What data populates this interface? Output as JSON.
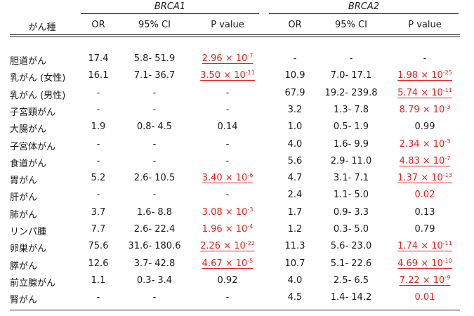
{
  "groups": {
    "brca1": "BRCA1",
    "brca2": "BRCA2"
  },
  "headers": {
    "cancer": "がん種",
    "or": "OR",
    "ci": "95% CI",
    "p": "P value"
  },
  "rows": [
    {
      "name": "胆道がん",
      "b1": {
        "or": "17.4",
        "ci": "5.8- 51.9",
        "p": {
          "m": "2.96 × 10",
          "e": "-7",
          "red": true,
          "ul": true
        }
      },
      "b2": {
        "or": "-",
        "ci": "-",
        "p": {
          "m": "-",
          "e": "",
          "red": false,
          "ul": false
        }
      }
    },
    {
      "name": "乳がん (女性)",
      "b1": {
        "or": "16.1",
        "ci": "7.1- 36.7",
        "p": {
          "m": "3.50 × 10",
          "e": "-11",
          "red": true,
          "ul": true
        }
      },
      "b2": {
        "or": "10.9",
        "ci": "7.0- 17.1",
        "p": {
          "m": "1.98 × 10",
          "e": "-25",
          "red": true,
          "ul": true
        }
      }
    },
    {
      "name": "乳がん (男性)",
      "b1": {
        "or": "-",
        "ci": "-",
        "p": {
          "m": "-",
          "e": "",
          "red": false,
          "ul": false
        }
      },
      "b2": {
        "or": "67.9",
        "ci": "19.2- 239.8",
        "p": {
          "m": "5.74 × 10",
          "e": "-11",
          "red": true,
          "ul": true
        }
      }
    },
    {
      "name": "子宮頸がん",
      "b1": {
        "or": "-",
        "ci": "-",
        "p": {
          "m": "-",
          "e": "",
          "red": false,
          "ul": false
        }
      },
      "b2": {
        "or": "3.2",
        "ci": "1.3- 7.8",
        "p": {
          "m": "8.79 × 10",
          "e": "-3",
          "red": true,
          "ul": false
        }
      }
    },
    {
      "name": "大腸がん",
      "b1": {
        "or": "1.9",
        "ci": "0.8- 4.5",
        "p": {
          "m": "0.14",
          "e": "",
          "red": false,
          "ul": false
        }
      },
      "b2": {
        "or": "1.0",
        "ci": "0.5- 1.9",
        "p": {
          "m": "0.99",
          "e": "",
          "red": false,
          "ul": false
        }
      }
    },
    {
      "name": "子宮体がん",
      "b1": {
        "or": "-",
        "ci": "-",
        "p": {
          "m": "-",
          "e": "",
          "red": false,
          "ul": false
        }
      },
      "b2": {
        "or": "4.0",
        "ci": "1.6- 9.9",
        "p": {
          "m": "2.34 × 10",
          "e": "-3",
          "red": true,
          "ul": false
        }
      }
    },
    {
      "name": "食道がん",
      "b1": {
        "or": "-",
        "ci": "-",
        "p": {
          "m": "-",
          "e": "",
          "red": false,
          "ul": false
        }
      },
      "b2": {
        "or": "5.6",
        "ci": "2.9- 11.0",
        "p": {
          "m": "4.83 × 10",
          "e": "-7",
          "red": true,
          "ul": true
        }
      }
    },
    {
      "name": "胃がん",
      "b1": {
        "or": "5.2",
        "ci": "2.6- 10.5",
        "p": {
          "m": "3.40 × 10",
          "e": "-6",
          "red": true,
          "ul": true
        }
      },
      "b2": {
        "or": "4.7",
        "ci": "3.1- 7.1",
        "p": {
          "m": "1.37 × 10",
          "e": "-13",
          "red": true,
          "ul": true
        }
      }
    },
    {
      "name": "肝がん",
      "b1": {
        "or": "-",
        "ci": "-",
        "p": {
          "m": "-",
          "e": "",
          "red": false,
          "ul": false
        }
      },
      "b2": {
        "or": "2.4",
        "ci": "1.1- 5.0",
        "p": {
          "m": "0.02",
          "e": "",
          "red": true,
          "ul": false
        }
      }
    },
    {
      "name": "肺がん",
      "b1": {
        "or": "3.7",
        "ci": "1.6- 8.8",
        "p": {
          "m": "3.08 × 10",
          "e": "-3",
          "red": true,
          "ul": false
        }
      },
      "b2": {
        "or": "1.7",
        "ci": "0.9- 3.3",
        "p": {
          "m": "0.13",
          "e": "",
          "red": false,
          "ul": false
        }
      }
    },
    {
      "name": "リンパ腫",
      "b1": {
        "or": "7.7",
        "ci": "2.6- 22.4",
        "p": {
          "m": "1.96 × 10",
          "e": "-4",
          "red": true,
          "ul": false
        }
      },
      "b2": {
        "or": "1.2",
        "ci": "0.3- 5.0",
        "p": {
          "m": "0.79",
          "e": "",
          "red": false,
          "ul": false
        }
      }
    },
    {
      "name": "卵巣がん",
      "b1": {
        "or": "75.6",
        "ci": "31.6- 180.6",
        "p": {
          "m": "2.26 × 10",
          "e": "-22",
          "red": true,
          "ul": true
        }
      },
      "b2": {
        "or": "11.3",
        "ci": "5.6- 23.0",
        "p": {
          "m": "1.74 × 10",
          "e": "-11",
          "red": true,
          "ul": true
        }
      }
    },
    {
      "name": "膵がん",
      "b1": {
        "or": "12.6",
        "ci": "3.7- 42.8",
        "p": {
          "m": "4.67 × 10",
          "e": "-5",
          "red": true,
          "ul": true
        }
      },
      "b2": {
        "or": "10.7",
        "ci": "5.1- 22.6",
        "p": {
          "m": "4.69 × 10",
          "e": "-10",
          "red": true,
          "ul": true
        }
      }
    },
    {
      "name": "前立腺がん",
      "b1": {
        "or": "1.1",
        "ci": "0.3- 3.4",
        "p": {
          "m": "0.92",
          "e": "",
          "red": false,
          "ul": false
        }
      },
      "b2": {
        "or": "4.0",
        "ci": "2.5- 6.5",
        "p": {
          "m": "7.22 × 10",
          "e": "-9",
          "red": true,
          "ul": true
        }
      }
    },
    {
      "name": "腎がん",
      "b1": {
        "or": "-",
        "ci": "-",
        "p": {
          "m": "-",
          "e": "",
          "red": false,
          "ul": false
        }
      },
      "b2": {
        "or": "4.5",
        "ci": "1.4- 14.2",
        "p": {
          "m": "0.01",
          "e": "",
          "red": true,
          "ul": false
        }
      }
    }
  ]
}
